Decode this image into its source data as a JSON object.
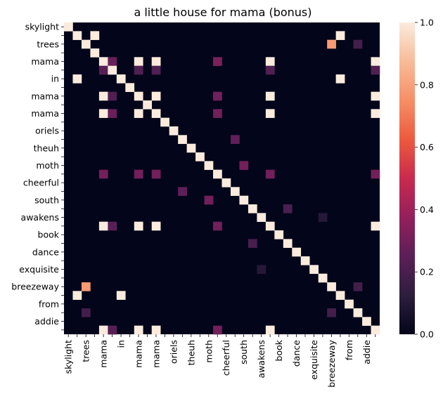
{
  "chart_data": {
    "type": "heatmap",
    "title": "a little house for mama (bonus)",
    "xlabel": "",
    "ylabel": "",
    "labels": [
      "skylight",
      "",
      "trees",
      "",
      "mama",
      "",
      "in",
      "",
      "mama",
      "",
      "mama",
      "",
      "oriels",
      "",
      "theuh",
      "",
      "moth",
      "",
      "cheerful",
      "",
      "south",
      "",
      "awakens",
      "",
      "book",
      "",
      "dance",
      "",
      "exquisite",
      "",
      "breezeway",
      "",
      "from",
      "",
      "addie",
      ""
    ],
    "colorbar": {
      "min": 0.0,
      "max": 1.0,
      "ticks": [
        "0.0",
        "0.2",
        "0.4",
        "0.6",
        "0.8",
        "1.0"
      ]
    },
    "colormap": [
      "#03051a",
      "#2d1e3e",
      "#5c1f58",
      "#93205d",
      "#c92a4e",
      "#ec5a3d",
      "#f68f66",
      "#f8bb98",
      "#faebdd"
    ],
    "cells": [
      [
        0,
        0,
        1.0
      ],
      [
        1,
        1,
        1.0
      ],
      [
        1,
        3,
        1.0
      ],
      [
        1,
        31,
        1.0
      ],
      [
        2,
        2,
        1.0
      ],
      [
        2,
        30,
        0.78
      ],
      [
        2,
        33,
        0.18
      ],
      [
        3,
        3,
        1.0
      ],
      [
        4,
        4,
        1.0
      ],
      [
        4,
        5,
        0.28
      ],
      [
        4,
        8,
        1.0
      ],
      [
        4,
        10,
        1.0
      ],
      [
        4,
        17,
        0.32
      ],
      [
        4,
        23,
        1.0
      ],
      [
        4,
        35,
        1.0
      ],
      [
        5,
        4,
        0.24
      ],
      [
        5,
        5,
        1.0
      ],
      [
        5,
        8,
        0.22
      ],
      [
        5,
        10,
        0.22
      ],
      [
        5,
        23,
        0.22
      ],
      [
        5,
        35,
        0.22
      ],
      [
        6,
        1,
        1.0
      ],
      [
        6,
        6,
        1.0
      ],
      [
        6,
        31,
        1.0
      ],
      [
        7,
        7,
        1.0
      ],
      [
        8,
        4,
        1.0
      ],
      [
        8,
        5,
        0.22
      ],
      [
        8,
        8,
        1.0
      ],
      [
        8,
        10,
        1.0
      ],
      [
        8,
        17,
        0.3
      ],
      [
        8,
        23,
        1.0
      ],
      [
        8,
        35,
        1.0
      ],
      [
        9,
        9,
        1.0
      ],
      [
        10,
        4,
        1.0
      ],
      [
        10,
        5,
        0.28
      ],
      [
        10,
        8,
        1.0
      ],
      [
        10,
        10,
        1.0
      ],
      [
        10,
        17,
        0.3
      ],
      [
        10,
        23,
        1.0
      ],
      [
        10,
        35,
        1.0
      ],
      [
        11,
        11,
        1.0
      ],
      [
        12,
        12,
        1.0
      ],
      [
        13,
        13,
        1.0
      ],
      [
        13,
        19,
        0.26
      ],
      [
        14,
        14,
        1.0
      ],
      [
        15,
        15,
        1.0
      ],
      [
        16,
        16,
        1.0
      ],
      [
        16,
        20,
        0.3
      ],
      [
        17,
        4,
        0.3
      ],
      [
        17,
        8,
        0.3
      ],
      [
        17,
        10,
        0.3
      ],
      [
        17,
        17,
        1.0
      ],
      [
        17,
        23,
        0.3
      ],
      [
        17,
        35,
        0.3
      ],
      [
        18,
        18,
        1.0
      ],
      [
        19,
        13,
        0.26
      ],
      [
        19,
        19,
        1.0
      ],
      [
        20,
        16,
        0.3
      ],
      [
        20,
        20,
        1.0
      ],
      [
        21,
        21,
        1.0
      ],
      [
        21,
        25,
        0.2
      ],
      [
        22,
        22,
        1.0
      ],
      [
        22,
        29,
        0.1
      ],
      [
        23,
        4,
        1.0
      ],
      [
        23,
        5,
        0.24
      ],
      [
        23,
        8,
        1.0
      ],
      [
        23,
        10,
        1.0
      ],
      [
        23,
        17,
        0.3
      ],
      [
        23,
        23,
        1.0
      ],
      [
        23,
        35,
        1.0
      ],
      [
        24,
        24,
        1.0
      ],
      [
        25,
        21,
        0.2
      ],
      [
        25,
        25,
        1.0
      ],
      [
        26,
        26,
        1.0
      ],
      [
        27,
        27,
        1.0
      ],
      [
        28,
        22,
        0.1
      ],
      [
        28,
        28,
        1.0
      ],
      [
        29,
        29,
        1.0
      ],
      [
        30,
        2,
        0.78
      ],
      [
        30,
        30,
        1.0
      ],
      [
        30,
        33,
        0.18
      ],
      [
        31,
        1,
        1.0
      ],
      [
        31,
        6,
        1.0
      ],
      [
        31,
        31,
        1.0
      ],
      [
        32,
        32,
        1.0
      ],
      [
        33,
        2,
        0.18
      ],
      [
        33,
        30,
        0.18
      ],
      [
        33,
        33,
        1.0
      ],
      [
        34,
        34,
        1.0
      ],
      [
        35,
        4,
        1.0
      ],
      [
        35,
        5,
        0.24
      ],
      [
        35,
        8,
        1.0
      ],
      [
        35,
        10,
        1.0
      ],
      [
        35,
        17,
        0.3
      ],
      [
        35,
        23,
        1.0
      ],
      [
        35,
        35,
        1.0
      ]
    ]
  }
}
